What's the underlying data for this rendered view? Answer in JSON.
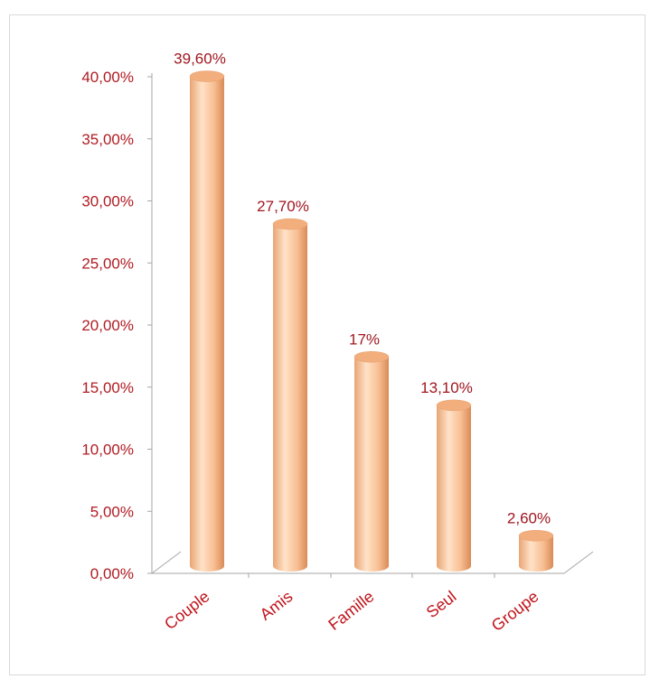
{
  "chart_data": {
    "type": "bar",
    "categories": [
      "Couple",
      "Amis",
      "Famille",
      "Seul",
      "Groupe"
    ],
    "values": [
      39.6,
      27.7,
      17,
      13.1,
      2.6
    ],
    "data_labels": [
      "39,60%",
      "27,70%",
      "17%",
      "13,10%",
      "2,60%"
    ],
    "y_tick_labels": [
      "0,00%",
      "5,00%",
      "10,00%",
      "15,00%",
      "20,00%",
      "25,00%",
      "30,00%",
      "35,00%",
      "40,00%"
    ],
    "y_ticks": [
      0,
      5,
      10,
      15,
      20,
      25,
      30,
      35,
      40
    ],
    "ylim": [
      0,
      40
    ],
    "title": "",
    "xlabel": "",
    "ylabel": "",
    "grid": false,
    "legend": "none",
    "bar_style": "3d-cylinder",
    "colors": {
      "bar_light": "#ffe2c8",
      "bar_mid": "#fcc49a",
      "bar_dark": "#d98b56",
      "bar_top": "#f2ae7c",
      "label_text": "#b01c23",
      "axis": "#a6a6a6"
    }
  }
}
